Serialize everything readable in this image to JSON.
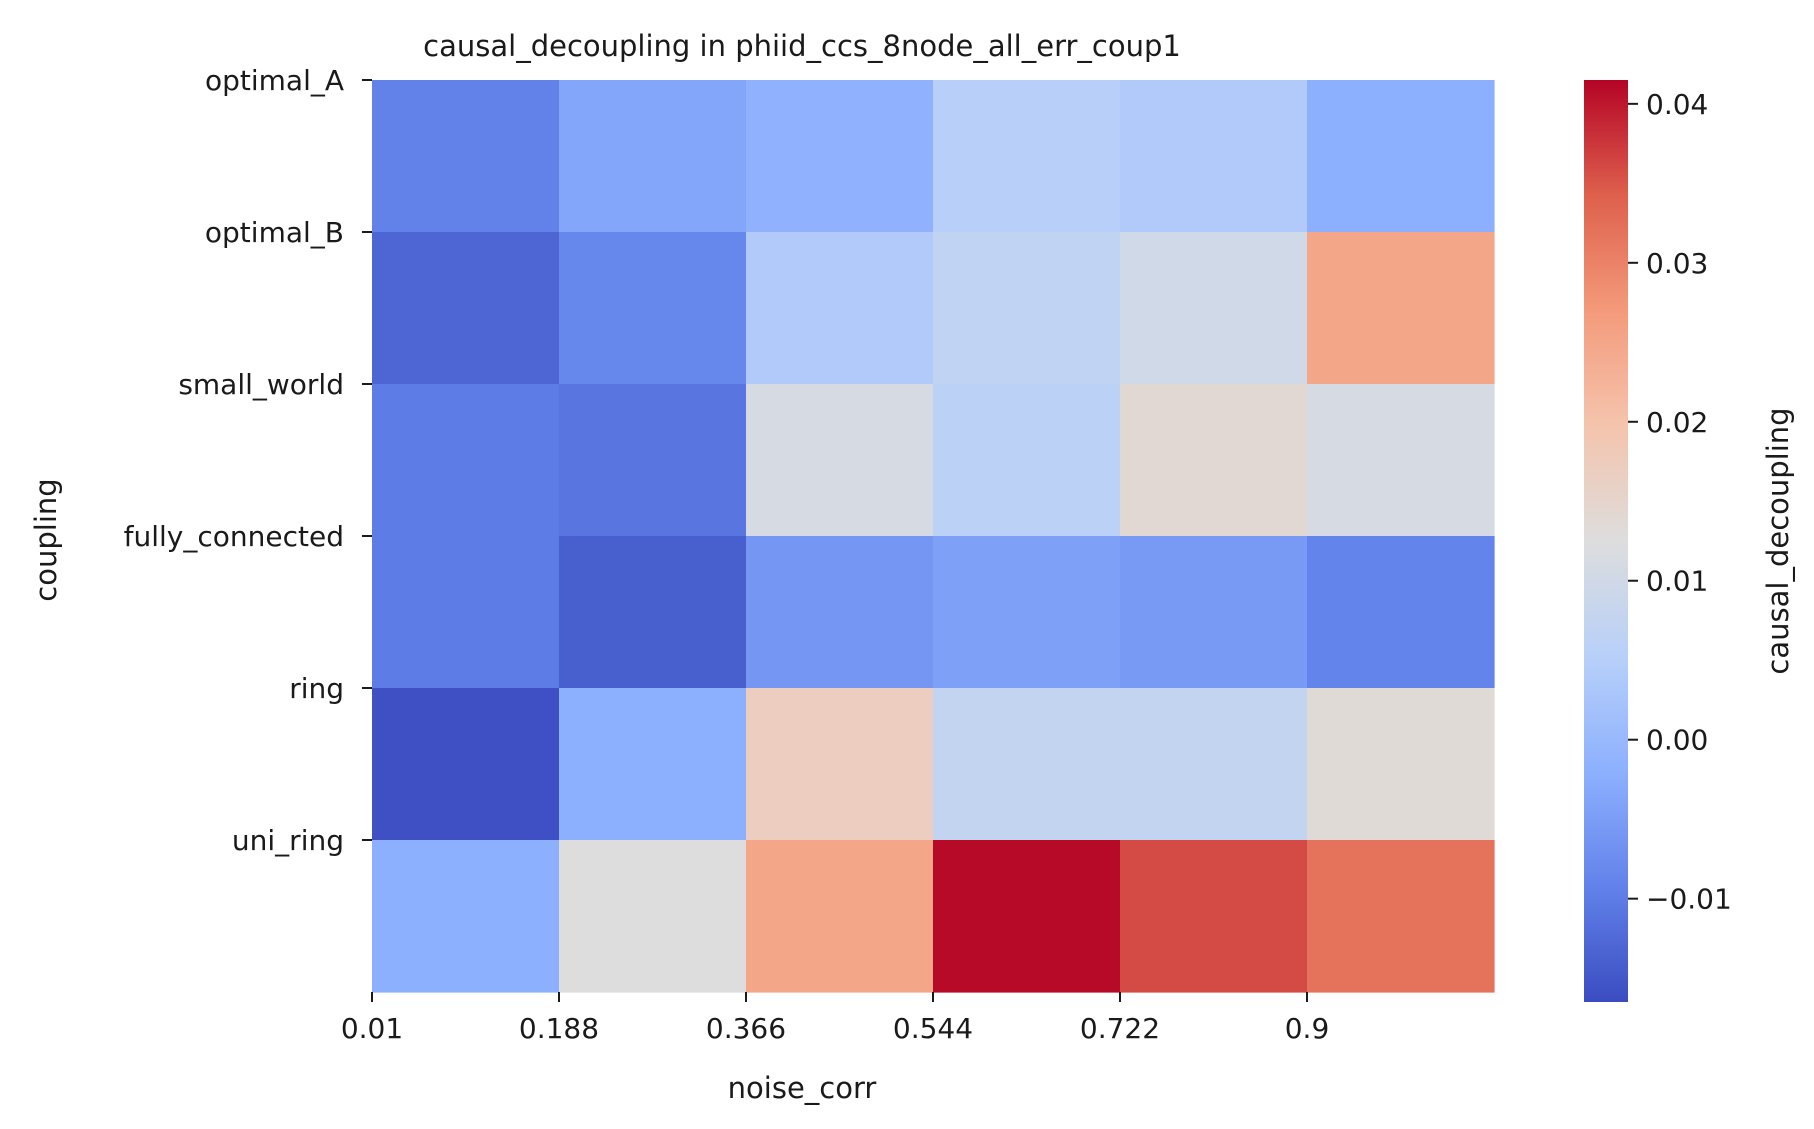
{
  "chart_data": {
    "type": "heatmap",
    "title": "causal_decoupling in phiid_ccs_8node_all_err_coup1",
    "xlabel": "noise_corr",
    "ylabel": "coupling",
    "colorbar_label": "causal_decoupling",
    "colormap": "coolwarm",
    "x_tick_labels": [
      "0.01",
      "0.188",
      "0.366",
      "0.544",
      "0.722",
      "0.9"
    ],
    "rows": [
      "optimal_A",
      "optimal_B",
      "small_world",
      "fully_connected",
      "ring",
      "uni_ring"
    ],
    "values": [
      [
        -0.0093,
        -0.0035,
        -0.0015,
        0.005,
        0.004,
        -0.002
      ],
      [
        -0.013,
        -0.0085,
        0.004,
        0.007,
        0.01,
        0.025
      ],
      [
        -0.01,
        -0.011,
        0.011,
        0.006,
        0.014,
        0.011
      ],
      [
        -0.01,
        -0.014,
        -0.006,
        -0.0045,
        -0.0055,
        -0.009
      ],
      [
        -0.016,
        -0.002,
        0.017,
        0.0075,
        0.0075,
        0.0135
      ],
      [
        -0.002,
        0.0125,
        0.025,
        0.041,
        0.036,
        0.032
      ]
    ],
    "vmin": -0.0165,
    "vmax": 0.0415,
    "colorbar_ticks": [
      0.04,
      0.03,
      0.02,
      0.01,
      0.0,
      -0.01
    ],
    "colorbar_tick_labels": [
      "0.04",
      "0.03",
      "0.02",
      "0.01",
      "0.00",
      "−0.01"
    ],
    "grid": false,
    "legend": "colorbar-right"
  }
}
